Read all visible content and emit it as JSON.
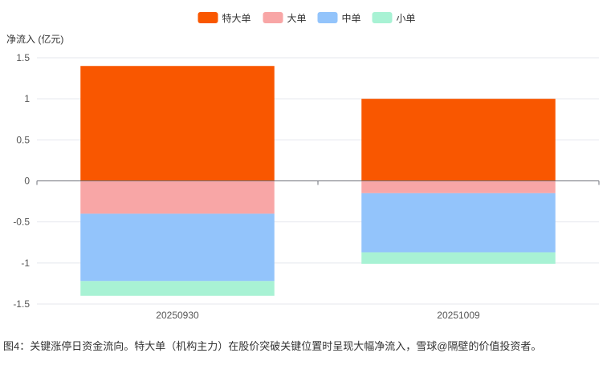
{
  "chart_data": {
    "type": "bar",
    "stacked": true,
    "categories": [
      "20250930",
      "20251009"
    ],
    "series": [
      {
        "name": "特大单",
        "color": "#f95700",
        "values": [
          1.4,
          1.0
        ]
      },
      {
        "name": "大单",
        "color": "#f8a6a6",
        "values": [
          -0.4,
          -0.15
        ]
      },
      {
        "name": "中单",
        "color": "#93c4fb",
        "values": [
          -0.82,
          -0.72
        ]
      },
      {
        "name": "小单",
        "color": "#a8f2d4",
        "values": [
          -0.18,
          -0.14
        ]
      }
    ],
    "ylabel": "净流入 (亿元)",
    "ylim": [
      -1.5,
      1.5
    ],
    "yticks": [
      1.5,
      1,
      0.5,
      0,
      -0.5,
      -1,
      -1.5
    ],
    "ytick_labels": [
      "1.5",
      "1",
      "0.5",
      "0",
      "-0.5",
      "-1",
      "-1.5"
    ],
    "grid": true,
    "legend_position": "top-center"
  },
  "caption": "图4：关键涨停日资金流向。特大单（机构主力）在股价突破关键位置时呈现大幅净流入，雪球@隔壁的价值投资者。"
}
